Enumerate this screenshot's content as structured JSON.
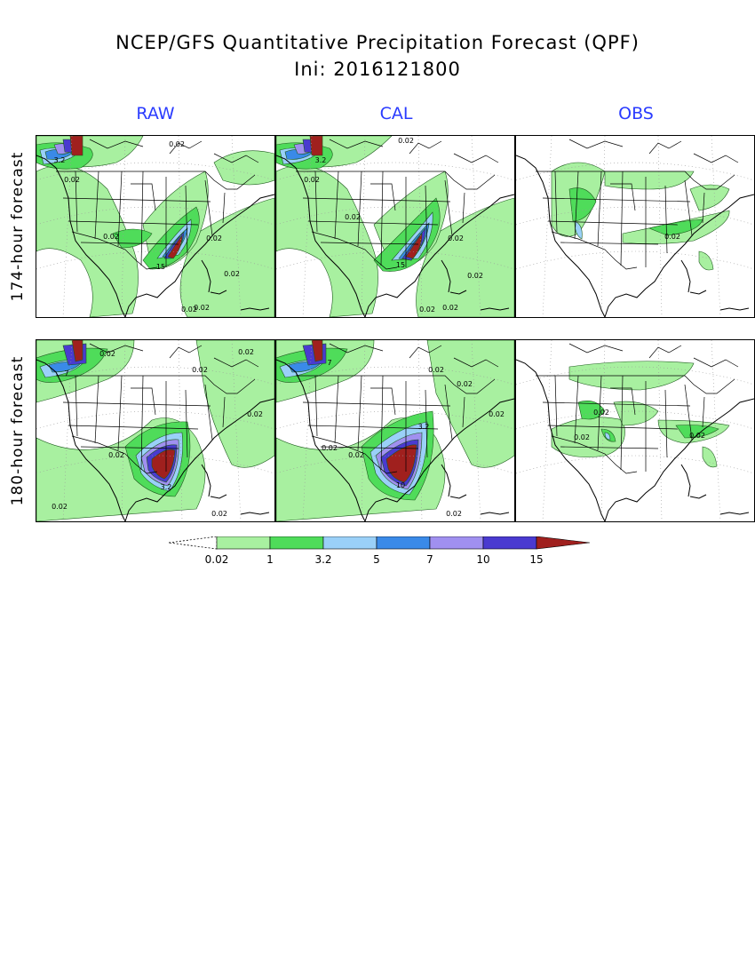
{
  "title_line1": "NCEP/GFS Quantitative Precipitation Forecast (QPF)",
  "title_line2": "Ini: 2016121800",
  "columns": [
    {
      "key": "raw",
      "label": "RAW"
    },
    {
      "key": "cal",
      "label": "CAL"
    },
    {
      "key": "obs",
      "label": "OBS"
    }
  ],
  "rows": [
    {
      "key": "f174",
      "label": "174-hour forecast"
    },
    {
      "key": "f180",
      "label": "180-hour forecast"
    }
  ],
  "colorbar": {
    "levels": [
      "0.02",
      "1",
      "3.2",
      "5",
      "7",
      "10",
      "15"
    ],
    "colors": [
      "#a8f0a0",
      "#4fdc5a",
      "#9ad0f8",
      "#3a8ae8",
      "#a090f0",
      "#4a3ad0",
      "#a0201e"
    ]
  },
  "header_color": "#2a3bff",
  "contour_labels": {
    "f174_raw": [
      "0.02",
      "0.02",
      "0.02",
      "0.02",
      "0.02",
      "0.02",
      "0.02",
      "3.2",
      "15"
    ],
    "f174_cal": [
      "0.02",
      "0.02",
      "0.02",
      "0.02",
      "0.02",
      "0.02",
      "0.02",
      "3.2",
      "15"
    ],
    "f174_obs": [
      "0.02"
    ],
    "f180_raw": [
      "0.02",
      "0.02",
      "0.02",
      "0.02",
      "0.02",
      "0.02",
      "0.02",
      "7",
      "3.2"
    ],
    "f180_cal": [
      "0.02",
      "0.02",
      "0.02",
      "0.02",
      "0.02",
      "0.02",
      "7",
      "3.2",
      "10"
    ],
    "f180_obs": [
      "0.02",
      "0.02",
      "0.02"
    ]
  }
}
